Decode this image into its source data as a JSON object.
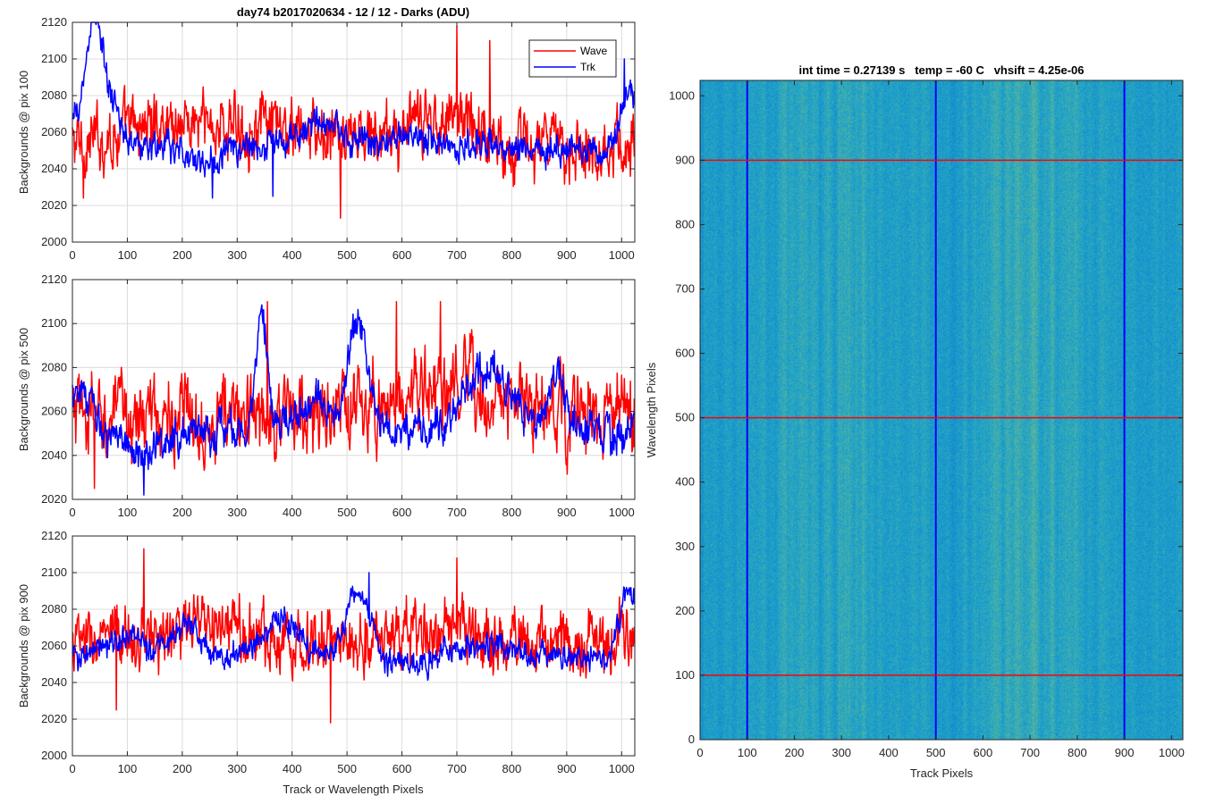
{
  "colors": {
    "wave": "#ff0000",
    "trk": "#0000ff",
    "grid": "#dcdcdc",
    "axis": "#262626",
    "heatmap_base": "#1aa3c9",
    "heatmap_low": "#1565c6",
    "heatmap_high": "#7cc57a"
  },
  "chart_data": [
    {
      "type": "line",
      "title": "day74 b2017020634 - 12 / 12 - Darks (ADU)",
      "xlabel": "",
      "ylabel": "Backgrounds @ pix 100",
      "xlim": [
        0,
        1024
      ],
      "ylim": [
        2000,
        2120
      ],
      "xticks": [
        "0",
        "100",
        "200",
        "300",
        "400",
        "500",
        "600",
        "700",
        "800",
        "900",
        "1000"
      ],
      "yticks": [
        "2000",
        "2020",
        "2040",
        "2060",
        "2080",
        "2100",
        "2120"
      ],
      "grid": true,
      "legend": {
        "position": "top-right",
        "entries": [
          "Wave",
          "Trk"
        ]
      },
      "series": [
        {
          "name": "Wave",
          "color": "#ff0000",
          "mean": 2053,
          "noise": 14,
          "features": [
            [
              150,
              8,
              60
            ],
            [
              300,
              10,
              120
            ],
            [
              640,
              8,
              60
            ],
            [
              700,
              12,
              40
            ]
          ],
          "extremes": [
            [
              488,
              2013
            ],
            [
              700,
              2118
            ],
            [
              760,
              2110
            ],
            [
              20,
              2024
            ]
          ]
        },
        {
          "name": "Trk",
          "color": "#0000ff",
          "mean": 2052,
          "noise": 7,
          "features": [
            [
              40,
              50,
              14
            ],
            [
              70,
              15,
              20
            ],
            [
              240,
              -8,
              30
            ],
            [
              450,
              12,
              40
            ],
            [
              620,
              8,
              30
            ],
            [
              1015,
              30,
              15
            ],
            [
              30,
              18,
              30
            ]
          ],
          "extremes": [
            [
              255,
              2024
            ],
            [
              365,
              2025
            ],
            [
              1005,
              2100
            ]
          ]
        }
      ]
    },
    {
      "type": "line",
      "title": "",
      "xlabel": "",
      "ylabel": "Backgrounds @ pix 500",
      "xlim": [
        0,
        1024
      ],
      "ylim": [
        2020,
        2120
      ],
      "xticks": [
        "0",
        "100",
        "200",
        "300",
        "400",
        "500",
        "600",
        "700",
        "800",
        "900",
        "1000"
      ],
      "yticks": [
        "2020",
        "2040",
        "2060",
        "2080",
        "2100",
        "2120"
      ],
      "grid": true,
      "series": [
        {
          "name": "Wave",
          "color": "#ff0000",
          "mean": 2058,
          "noise": 15,
          "features": [
            [
              720,
              10,
              80
            ],
            [
              600,
              6,
              60
            ]
          ],
          "extremes": [
            [
              40,
              2025
            ],
            [
              670,
              2110
            ],
            [
              590,
              2110
            ],
            [
              355,
              2110
            ]
          ]
        },
        {
          "name": "Trk",
          "color": "#0000ff",
          "mean": 2052,
          "noise": 7,
          "features": [
            [
              345,
              50,
              10
            ],
            [
              520,
              48,
              18
            ],
            [
              440,
              12,
              30
            ],
            [
              760,
              28,
              40
            ],
            [
              880,
              30,
              14
            ],
            [
              10,
              20,
              20
            ],
            [
              130,
              -10,
              40
            ]
          ],
          "extremes": [
            [
              130,
              2022
            ],
            [
              980,
              2040
            ]
          ]
        }
      ]
    },
    {
      "type": "line",
      "title": "",
      "xlabel": "Track or Wavelength Pixels",
      "ylabel": "Backgrounds @ pix 900",
      "xlim": [
        0,
        1024
      ],
      "ylim": [
        2000,
        2120
      ],
      "xticks": [
        "0",
        "100",
        "200",
        "300",
        "400",
        "500",
        "600",
        "700",
        "800",
        "900",
        "1000"
      ],
      "yticks": [
        "2000",
        "2020",
        "2040",
        "2060",
        "2080",
        "2100",
        "2120"
      ],
      "grid": true,
      "series": [
        {
          "name": "Wave",
          "color": "#ff0000",
          "mean": 2062,
          "noise": 14,
          "features": [
            [
              250,
              8,
              80
            ],
            [
              650,
              5,
              80
            ]
          ],
          "extremes": [
            [
              130,
              2113
            ],
            [
              470,
              2018
            ],
            [
              700,
              2108
            ],
            [
              80,
              2025
            ]
          ]
        },
        {
          "name": "Trk",
          "color": "#0000ff",
          "mean": 2055,
          "noise": 6,
          "features": [
            [
              210,
              18,
              25
            ],
            [
              380,
              20,
              30
            ],
            [
              520,
              38,
              20
            ],
            [
              590,
              -6,
              40
            ],
            [
              760,
              6,
              40
            ],
            [
              1015,
              35,
              15
            ],
            [
              100,
              10,
              30
            ]
          ],
          "extremes": [
            [
              540,
              2100
            ]
          ]
        }
      ]
    },
    {
      "type": "heatmap",
      "title": "int time = 0.27139 s   temp = -60 C   vhsift = 4.25e-06",
      "xlabel": "Track Pixels",
      "ylabel": "Wavelength Pixels",
      "xlim": [
        0,
        1024
      ],
      "ylim": [
        0,
        1024
      ],
      "xticks": [
        "0",
        "100",
        "200",
        "300",
        "400",
        "500",
        "600",
        "700",
        "800",
        "900",
        "1000"
      ],
      "yticks": [
        "0",
        "100",
        "200",
        "300",
        "400",
        "500",
        "600",
        "700",
        "800",
        "900",
        "1000"
      ],
      "bright_bands": [
        [
          270,
          90
        ],
        [
          690,
          110
        ]
      ],
      "marker_lines": {
        "vertical_x": [
          100,
          500,
          900
        ],
        "vertical_color": "#0000ff",
        "horizontal_y": [
          100,
          500,
          900
        ],
        "horizontal_color": "#ff0000"
      }
    }
  ]
}
